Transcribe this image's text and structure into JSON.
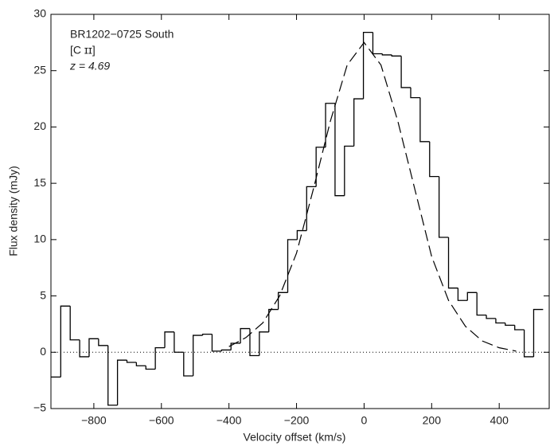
{
  "chart_data": {
    "type": "histogram",
    "annotations": [
      "BR1202−0725 South",
      "[C ɪɪ]",
      "z = 4.69"
    ],
    "xlabel": "Velocity offset (km/s)",
    "ylabel": "Flux density (mJy)",
    "bins": [
      -926,
      -898,
      -870,
      -842,
      -814,
      -786,
      -758,
      -730,
      -702,
      -674,
      -646,
      -618,
      -590,
      -562,
      -534,
      -506,
      -478,
      -450,
      -422,
      -394,
      -366,
      -338,
      -310,
      -282,
      -254,
      -226,
      -198,
      -170,
      -142,
      -114,
      -86,
      -58,
      -30,
      -2,
      26,
      54,
      82,
      110,
      138,
      166,
      194,
      222,
      250,
      278,
      306,
      334,
      362,
      390,
      418,
      446,
      474,
      502,
      530
    ],
    "values": [
      -2.2,
      4.1,
      1.1,
      -0.4,
      1.2,
      0.6,
      -4.7,
      -0.7,
      -0.9,
      -1.2,
      -1.5,
      0.4,
      1.8,
      0.0,
      -2.1,
      1.5,
      1.6,
      0.1,
      0.2,
      0.8,
      2.1,
      -0.3,
      1.8,
      3.8,
      5.3,
      10.0,
      10.8,
      14.7,
      18.2,
      22.1,
      13.9,
      18.3,
      22.5,
      28.4,
      26.5,
      26.4,
      26.3,
      23.5,
      22.6,
      18.7,
      15.6,
      10.2,
      5.7,
      4.6,
      5.3,
      3.3,
      3.0,
      2.6,
      2.4,
      2.0,
      -0.4,
      3.8
    ],
    "color": "#000000",
    "fit": {
      "x": [
        -400,
        -350,
        -300,
        -250,
        -200,
        -150,
        -100,
        -50,
        0,
        50,
        100,
        150,
        200,
        250,
        300,
        350,
        400,
        450
      ],
      "values": [
        0.5,
        1.3,
        2.6,
        5.0,
        8.8,
        14.5,
        20.5,
        25.5,
        27.5,
        25.5,
        20.5,
        14.5,
        8.5,
        4.6,
        2.3,
        1.0,
        0.4,
        0.1
      ],
      "color": "#000000"
    },
    "xlim": [
      -927,
      548
    ],
    "ylim": [
      -5,
      30
    ],
    "xticks": [
      {
        "value": -800,
        "label": "−800"
      },
      {
        "value": -600,
        "label": "−600"
      },
      {
        "value": -400,
        "label": "−400"
      },
      {
        "value": -200,
        "label": "−200"
      },
      0,
      200,
      400
    ],
    "yticks": [
      {
        "value": -5,
        "label": "−5"
      },
      0,
      5,
      10,
      15,
      20,
      25,
      30
    ]
  }
}
